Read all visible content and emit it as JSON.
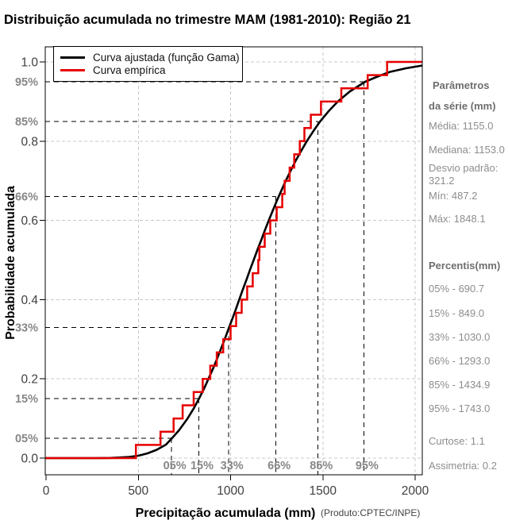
{
  "chart_data": {
    "type": "line",
    "title": "Distribuição acumulada no trimestre MAM (1981-2010): Região 21",
    "xlabel": "Precipitação acumulada (mm)",
    "ylabel": "Probabilidade acumulada",
    "credit": "(Produto:CPTEC/INPE)",
    "xlim": [
      0,
      2043
    ],
    "ylim": [
      0.0,
      1.0
    ],
    "x_ticks": [
      0,
      500,
      1000,
      1500,
      2000
    ],
    "y_ticks": [
      0.0,
      0.2,
      0.4,
      0.6,
      0.8,
      1.0
    ],
    "grid": true,
    "legend_position": "top-left",
    "percent_guides": [
      {
        "label": "05%",
        "p": 0.05,
        "x_mm": 680
      },
      {
        "label": "15%",
        "p": 0.15,
        "x_mm": 828
      },
      {
        "label": "33%",
        "p": 0.33,
        "x_mm": 990
      },
      {
        "label": "66%",
        "p": 0.66,
        "x_mm": 1246
      },
      {
        "label": "85%",
        "p": 0.85,
        "x_mm": 1474
      },
      {
        "label": "95%",
        "p": 0.95,
        "x_mm": 1722
      }
    ],
    "series": [
      {
        "name": "Curva ajustada (função Gama)",
        "color": "#000000",
        "kind": "fitted-gamma-cdf",
        "points": [
          [
            0,
            0
          ],
          [
            250,
            0
          ],
          [
            350,
            0.0005
          ],
          [
            450,
            0.003
          ],
          [
            500,
            0.006
          ],
          [
            550,
            0.012
          ],
          [
            600,
            0.021
          ],
          [
            650,
            0.034
          ],
          [
            682,
            0.05
          ],
          [
            720,
            0.07
          ],
          [
            767,
            0.1
          ],
          [
            800,
            0.125
          ],
          [
            829,
            0.15
          ],
          [
            856,
            0.175
          ],
          [
            880,
            0.2
          ],
          [
            904,
            0.225
          ],
          [
            926,
            0.25
          ],
          [
            947,
            0.275
          ],
          [
            968,
            0.3
          ],
          [
            988,
            0.325
          ],
          [
            1008,
            0.35
          ],
          [
            1028,
            0.375
          ],
          [
            1047,
            0.4
          ],
          [
            1066,
            0.425
          ],
          [
            1086,
            0.45
          ],
          [
            1105,
            0.475
          ],
          [
            1125,
            0.5
          ],
          [
            1145,
            0.525
          ],
          [
            1166,
            0.55
          ],
          [
            1186,
            0.575
          ],
          [
            1207,
            0.6
          ],
          [
            1229,
            0.625
          ],
          [
            1251,
            0.65
          ],
          [
            1275,
            0.675
          ],
          [
            1299,
            0.7
          ],
          [
            1325,
            0.725
          ],
          [
            1352,
            0.75
          ],
          [
            1382,
            0.775
          ],
          [
            1413,
            0.8
          ],
          [
            1448,
            0.825
          ],
          [
            1485,
            0.85
          ],
          [
            1530,
            0.875
          ],
          [
            1581,
            0.9
          ],
          [
            1645,
            0.925
          ],
          [
            1729,
            0.95
          ],
          [
            1790,
            0.962
          ],
          [
            1864,
            0.975
          ],
          [
            1950,
            0.984
          ],
          [
            2040,
            0.991
          ]
        ]
      },
      {
        "name": "Curva empírica",
        "color": "#e60000",
        "kind": "empirical-step-cdf",
        "values": [
          487,
          620,
          691,
          740,
          800,
          849,
          890,
          925,
          960,
          1000,
          1030,
          1060,
          1090,
          1120,
          1150,
          1156,
          1185,
          1215,
          1250,
          1280,
          1293,
          1320,
          1345,
          1375,
          1400,
          1435,
          1490,
          1600,
          1743,
          1848
        ]
      }
    ],
    "colors": {
      "grid": "#c8c8c8",
      "guide": "#000000",
      "tick_label": "#404040",
      "pct_label": "#878787"
    }
  },
  "side_panel": {
    "header_line1": "Parâmetros",
    "header_line2": "da série (mm)",
    "media": "Média: 1155.0",
    "mediana": "Mediana: 1153.0",
    "desvio": "Desvio padrão: 321.2",
    "min": "Mín: 487.2",
    "max": "Máx: 1848.1",
    "percentis_header": "Percentis(mm)",
    "p05": "05% - 690.7",
    "p15": "15% - 849.0",
    "p33": "33% - 1030.0",
    "p66": "66% - 1293.0",
    "p85": "85% - 1434.9",
    "p95": "95% - 1743.0",
    "curtose": "Curtose: 1.1",
    "assimetria": "Assimetria: 0.2"
  }
}
